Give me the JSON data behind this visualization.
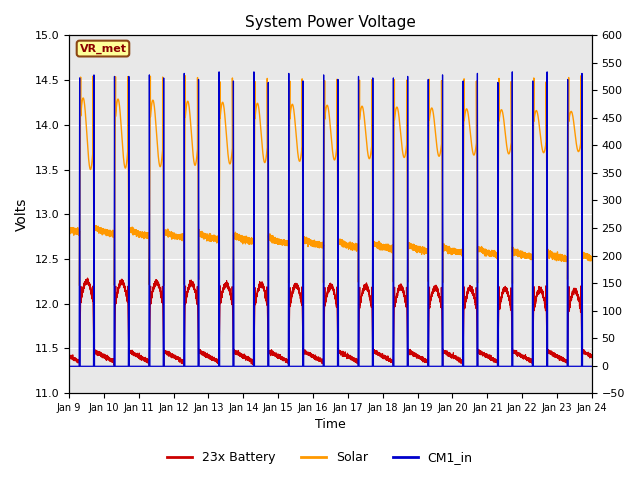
{
  "title": "System Power Voltage",
  "xlabel": "Time",
  "ylabel": "Volts",
  "ylim_left": [
    11.0,
    15.0
  ],
  "ylim_right": [
    -50,
    600
  ],
  "yticks_left": [
    11.0,
    11.5,
    12.0,
    12.5,
    13.0,
    13.5,
    14.0,
    14.5,
    15.0
  ],
  "yticks_right": [
    -50,
    0,
    50,
    100,
    150,
    200,
    250,
    300,
    350,
    400,
    450,
    500,
    550,
    600
  ],
  "xtick_labels": [
    "Jan 9",
    "Jan 10",
    "Jan 11",
    "Jan 12",
    "Jan 13",
    "Jan 14",
    "Jan 15",
    "Jan 16",
    "Jan 17",
    "Jan 18",
    "Jan 19",
    "Jan 20",
    "Jan 21",
    "Jan 22",
    "Jan 23",
    "Jan 24"
  ],
  "bg_color": "#e8e8e8",
  "annotation_text": "VR_met",
  "annotation_bg": "#ffff99",
  "annotation_border": "#8b4513",
  "legend_labels": [
    "23x Battery",
    "Solar",
    "CM1_in"
  ],
  "legend_colors": [
    "#cc0000",
    "#ff9900",
    "#0000cc"
  ],
  "line_colors": {
    "battery": "#cc0000",
    "solar": "#ff9900",
    "cm1": "#0000cc"
  },
  "num_days": 15
}
